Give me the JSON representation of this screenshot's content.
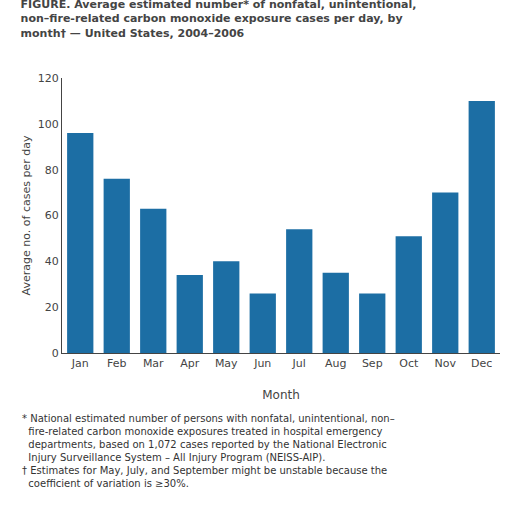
{
  "chart_data": {
    "type": "bar",
    "title": "FIGURE. Average estimated number* of nonfatal, unintentional,\nnon–fire-related carbon monoxide exposure cases per day, by\nmonth† — United States, 2004–2006",
    "categories": [
      "Jan",
      "Feb",
      "Mar",
      "Apr",
      "May",
      "Jun",
      "Jul",
      "Aug",
      "Sep",
      "Oct",
      "Nov",
      "Dec"
    ],
    "values": [
      96,
      76,
      63,
      34,
      40,
      26,
      54,
      35,
      26,
      51,
      70,
      110
    ],
    "color": "#1c6ea4",
    "xlabel": "Month",
    "ylabel": "Average no. of cases per day",
    "ylim": [
      0,
      120
    ],
    "yticks": [
      0,
      20,
      40,
      60,
      80,
      100,
      120
    ],
    "grid": false,
    "annotations": [
      "* National estimated number of persons with nonfatal, unintentional, non–\n  fire-related carbon monoxide exposures treated in hospital emergency\n  departments, based on 1,072 cases reported by the National Electronic\n  Injury Surveillance System – All Injury Program (NEISS-AIP).",
      "† Estimates for May, July, and September might be unstable because the\n  coefficient of variation is ≥30%."
    ]
  }
}
